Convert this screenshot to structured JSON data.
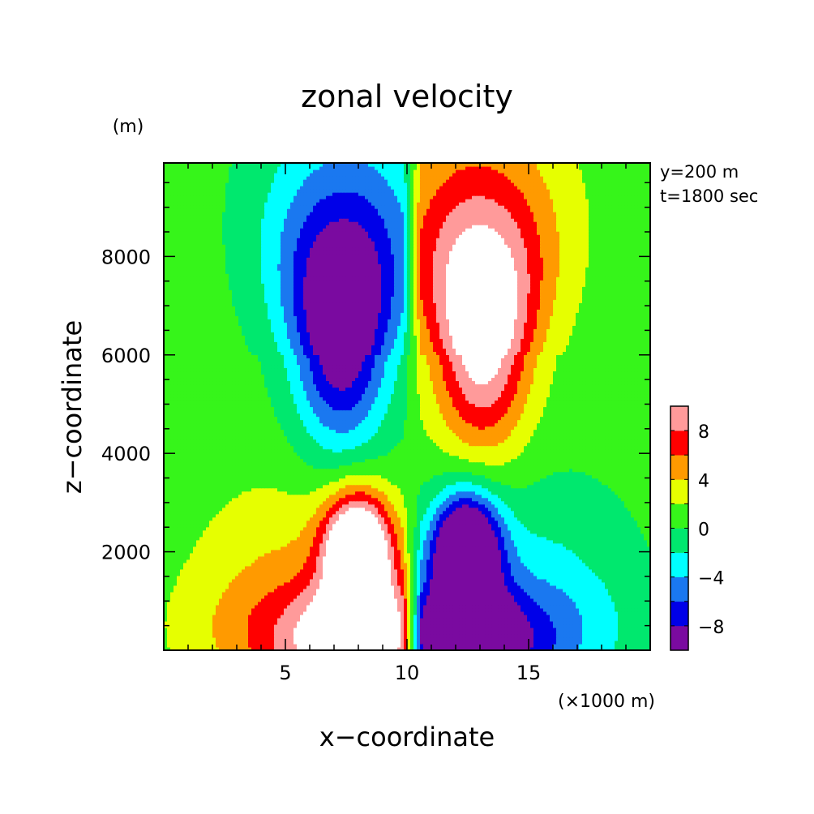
{
  "chart_data": {
    "type": "heatmap",
    "title": "zonal velocity",
    "xlabel": "x−coordinate",
    "ylabel": "z−coordinate",
    "x_unit": "(×1000 m)",
    "y_unit": "(m)",
    "annotations": [
      "y=200 m",
      "t=1800 sec"
    ],
    "xlim": [
      0,
      20
    ],
    "ylim": [
      0,
      9900
    ],
    "x_ticks": [
      5,
      10,
      15
    ],
    "x_tick_labels": [
      "5",
      "10",
      "15"
    ],
    "y_ticks": [
      2000,
      4000,
      6000,
      8000
    ],
    "y_tick_labels": [
      "2000",
      "4000",
      "6000",
      "8000"
    ],
    "colorbar": {
      "levels": [
        -10,
        -8,
        -6,
        -4,
        -2,
        0,
        2,
        4,
        6,
        8,
        10
      ],
      "labels": [
        "−8",
        "−4",
        "0",
        "4",
        "8"
      ],
      "label_values": [
        -8,
        -4,
        0,
        4,
        8
      ],
      "colors": [
        "#7a0aa0",
        "#0000e8",
        "#1a78f0",
        "#00ffff",
        "#00e86e",
        "#36f51a",
        "#e6ff00",
        "#ff9a00",
        "#ff0000",
        "#ff9a9a"
      ],
      "overflow_color": "#ffffff"
    },
    "field": {
      "description_free": true,
      "background": 0.8,
      "upper_jet": {
        "z_center": 6400,
        "x_offset": 3.0,
        "peak": 10.5
      },
      "lower_jet": {
        "z_center": 2200,
        "x_offset": 2.2,
        "peak": 12.5
      },
      "surface_spread": {
        "peak": 9.5
      }
    }
  }
}
